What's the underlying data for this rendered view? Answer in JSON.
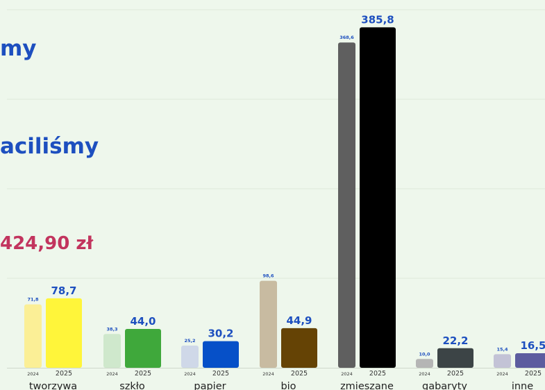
{
  "text": {
    "headline_top": "my",
    "headline_middle": "aciliśmy",
    "headline_amount": "424,90 zł"
  },
  "colors": {
    "background": "#eef7ec",
    "gridline": "#dde8da",
    "headline_blue": "#1d4fbf",
    "headline_red": "#c2345e",
    "value_label": "#1d4fbf",
    "year_label": "#333333",
    "category_label": "#222222"
  },
  "chart_data": {
    "type": "bar",
    "series": [
      {
        "name": "2024",
        "values": [
          71.8,
          38.3,
          25.2,
          98.6,
          368.6,
          10.0,
          15.4
        ]
      },
      {
        "name": "2025",
        "values": [
          78.7,
          44.0,
          30.2,
          44.9,
          385.8,
          22.2,
          16.5
        ]
      }
    ],
    "value_labels": {
      "2024": [
        "71,8",
        "38,3",
        "25,2",
        "98,6",
        "368,6",
        "10,0",
        "15,4"
      ],
      "2025": [
        "78,7",
        "44,0",
        "30,2",
        "44,9",
        "385,8",
        "22,2",
        "16,5"
      ]
    },
    "categories": [
      "tworzywa",
      "szkło",
      "papier",
      "bio",
      "zmieszane",
      "gabaryty",
      "inne"
    ],
    "year_labels": [
      "2024",
      "2025"
    ],
    "bar_colors": {
      "2024": [
        "#fbef96",
        "#cfe8cc",
        "#cfd8e8",
        "#c8bba1",
        "#5f5f5f",
        "#b5b5b5",
        "#c3c3d6"
      ],
      "2025": [
        "#fff53a",
        "#3fa83b",
        "#0650c8",
        "#654305",
        "#000000",
        "#3c4446",
        "#5c5c9f"
      ]
    },
    "ylim": [
      0,
      390
    ],
    "grid": true,
    "legend": "none"
  }
}
